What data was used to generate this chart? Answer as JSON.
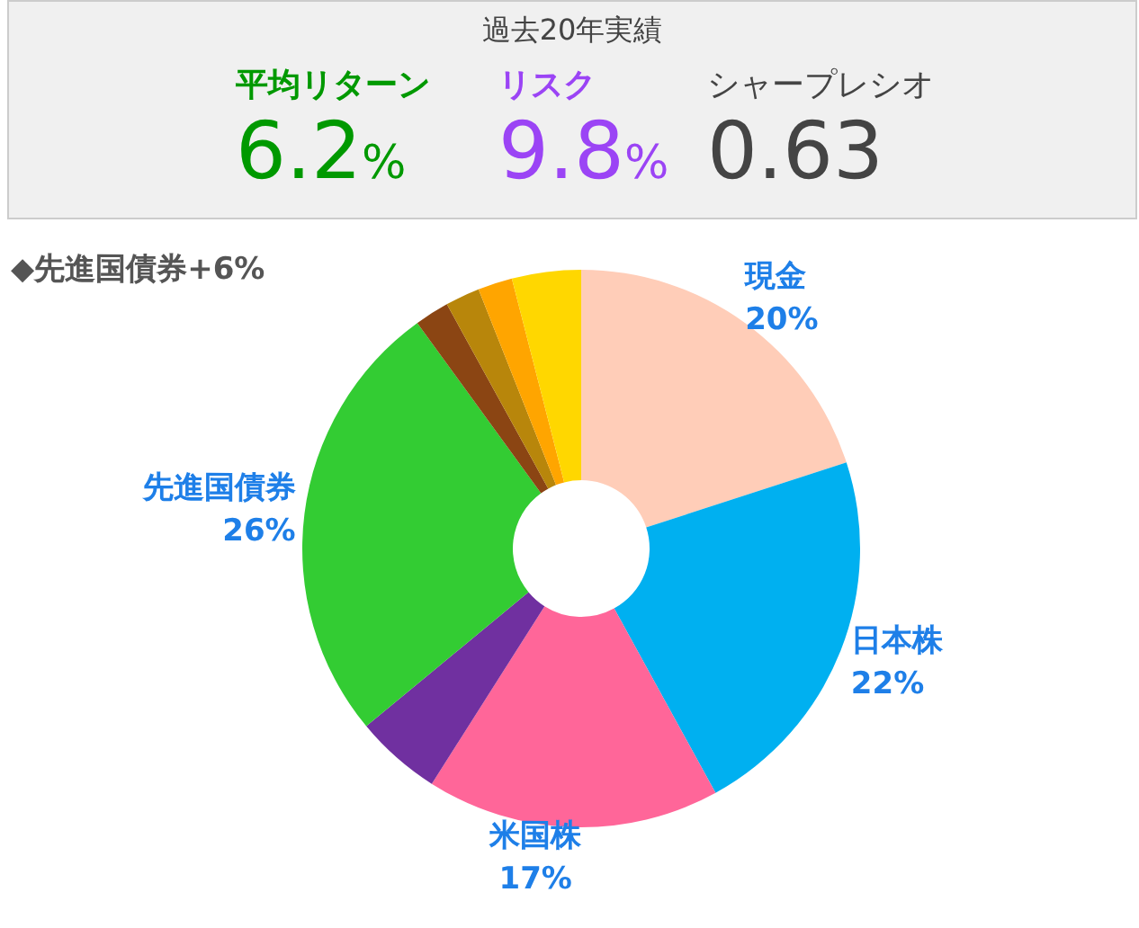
{
  "chart_data": {
    "type": "donut",
    "title": "過去20年実績",
    "subtitle": "◆先進国債券+6%",
    "annotations": [
      "平均リターン",
      "6.2%",
      "リスク",
      "9.8%",
      "シャープレシオ",
      "0.63"
    ],
    "categories": [
      "現金",
      "日本株",
      "米国株",
      null,
      "先進国債券",
      null,
      null,
      null,
      null
    ],
    "values": [
      20,
      22,
      17,
      5,
      26,
      2,
      2,
      2,
      4
    ],
    "value_labels": [
      "20%",
      "22%",
      "17%",
      null,
      "26%",
      null,
      null,
      null,
      null
    ],
    "colors": [
      "#ffcdb8",
      "#00b0f0",
      "#ff6699",
      "#7030a0",
      "#33cc33",
      "#8b4513",
      "#b8860b",
      "#ffa500",
      "#ffd700"
    ]
  }
}
